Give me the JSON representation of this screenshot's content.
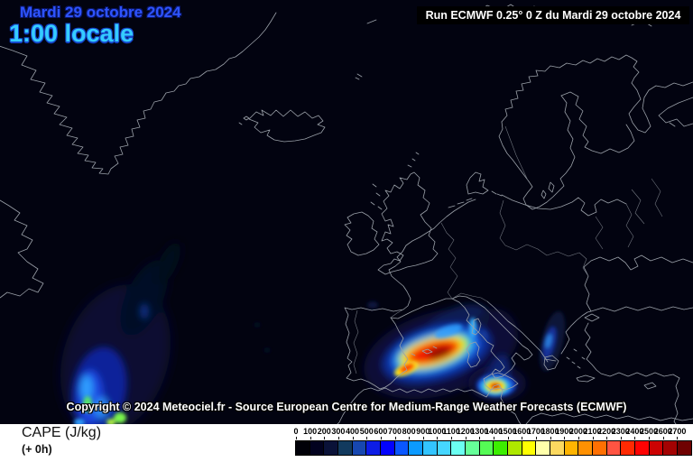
{
  "header": {
    "date_label": "Mardi 29 octobre 2024",
    "time_label": "1:00 locale",
    "run_label": "Run ECMWF 0.25° 0 Z du Mardi 29 octobre 2024"
  },
  "map": {
    "copyright": "Copyright © 2024 Meteociel.fr - Source European Centre for Medium-Range Weather Forecasts (ECMWF)"
  },
  "footer": {
    "parameter_label": "CAPE (J/kg)",
    "step_label": "(+ 0h)"
  },
  "legend": {
    "unit": "J/kg",
    "ticks": [
      "0",
      "100",
      "200",
      "300",
      "400",
      "500",
      "600",
      "700",
      "800",
      "900",
      "1000",
      "1100",
      "1200",
      "1300",
      "1400",
      "1500",
      "1600",
      "1700",
      "1800",
      "1900",
      "2000",
      "2100",
      "2200",
      "2300",
      "2400",
      "2500",
      "2600",
      "2700"
    ],
    "colors": [
      "#000008",
      "#02021f",
      "#0a1238",
      "#123a5e",
      "#1747b0",
      "#0d1de6",
      "#0202ff",
      "#0a57ff",
      "#0c9aff",
      "#33c4ff",
      "#46d6ff",
      "#6bfff2",
      "#66ff99",
      "#55fb55",
      "#3cee00",
      "#aee800",
      "#ffff02",
      "#ffffaa",
      "#fcd960",
      "#ffb400",
      "#ff9102",
      "#ff7002",
      "#ff5442",
      "#ff2a02",
      "#fe0202",
      "#cc0202",
      "#a30202",
      "#6f0101"
    ]
  },
  "colors": {
    "map_background": "#020310",
    "coastline": "#9aa0a8",
    "date_text": "#2e54ff",
    "time_text": "#35ccff",
    "run_text": "#ffffff"
  }
}
